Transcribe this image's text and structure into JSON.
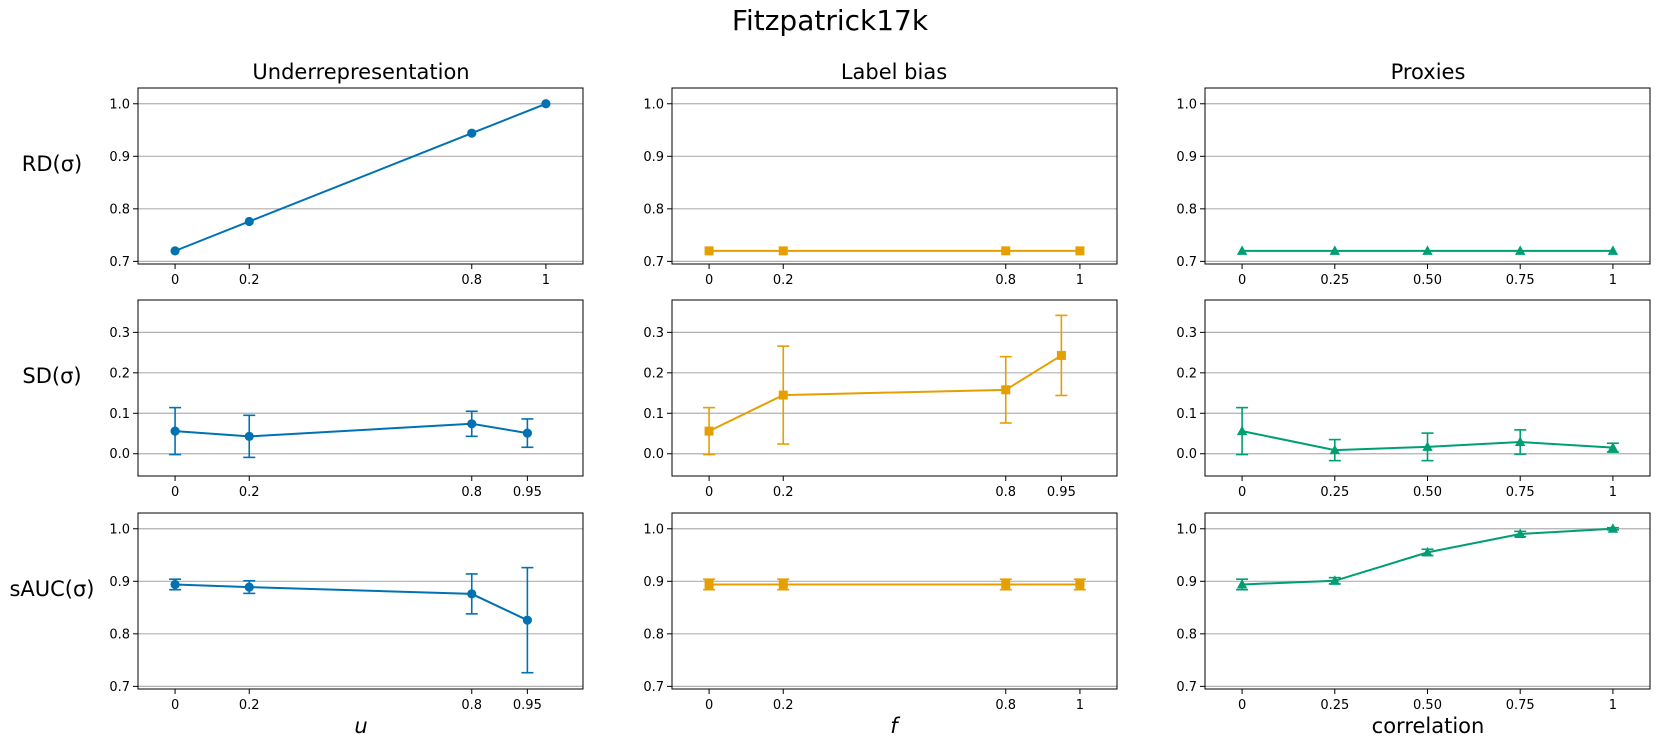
{
  "figure_title": "Fitzpatrick17k",
  "column_titles": [
    "Underrepresentation",
    "Label bias",
    "Proxies"
  ],
  "row_labels": [
    "RD(σ)",
    "SD(σ)",
    "sAUC(σ)"
  ],
  "x_labels": [
    "u",
    "f",
    "correlation"
  ],
  "colors": {
    "underrepresentation": "#0072B2",
    "label_bias": "#E69F00",
    "proxies": "#009E73",
    "grid": "#b0b0b0",
    "axis": "#000000"
  },
  "chart_data": [
    {
      "type": "line",
      "row": "RD(σ)",
      "column": "Underrepresentation",
      "marker": "circle",
      "color": "#0072B2",
      "x": [
        0,
        0.2,
        0.8,
        1
      ],
      "x_tick_labels": [
        "0",
        "0.2",
        "0.8",
        "1"
      ],
      "xlim": [
        -0.1,
        1.1
      ],
      "y": [
        0.72,
        0.776,
        0.944,
        1.0
      ],
      "err": null,
      "ylim": [
        0.695,
        1.03
      ],
      "yticks": [
        0.7,
        0.8,
        0.9,
        1.0
      ],
      "y_tick_labels": [
        "0.7",
        "0.8",
        "0.9",
        "1.0"
      ]
    },
    {
      "type": "line",
      "row": "RD(σ)",
      "column": "Label bias",
      "marker": "square",
      "color": "#E69F00",
      "x": [
        0,
        0.2,
        0.8,
        1
      ],
      "x_tick_labels": [
        "0",
        "0.2",
        "0.8",
        "1"
      ],
      "xlim": [
        -0.1,
        1.1
      ],
      "y": [
        0.72,
        0.72,
        0.72,
        0.72
      ],
      "err": null,
      "ylim": [
        0.695,
        1.03
      ],
      "yticks": [
        0.7,
        0.8,
        0.9,
        1.0
      ],
      "y_tick_labels": [
        "0.7",
        "0.8",
        "0.9",
        "1.0"
      ]
    },
    {
      "type": "line",
      "row": "RD(σ)",
      "column": "Proxies",
      "marker": "triangle",
      "color": "#009E73",
      "x": [
        0,
        0.25,
        0.5,
        0.75,
        1
      ],
      "x_tick_labels": [
        "0",
        "0.25",
        "0.50",
        "0.75",
        "1"
      ],
      "xlim": [
        -0.1,
        1.1
      ],
      "y": [
        0.72,
        0.72,
        0.72,
        0.72,
        0.72
      ],
      "err": null,
      "ylim": [
        0.695,
        1.03
      ],
      "yticks": [
        0.7,
        0.8,
        0.9,
        1.0
      ],
      "y_tick_labels": [
        "0.7",
        "0.8",
        "0.9",
        "1.0"
      ]
    },
    {
      "type": "line",
      "row": "SD(σ)",
      "column": "Underrepresentation",
      "marker": "circle",
      "color": "#0072B2",
      "x": [
        0,
        0.2,
        0.8,
        0.95
      ],
      "x_tick_labels": [
        "0",
        "0.2",
        "0.8",
        "0.95"
      ],
      "xlim": [
        -0.1,
        1.1
      ],
      "y": [
        0.056,
        0.043,
        0.074,
        0.051
      ],
      "err": [
        0.058,
        0.052,
        0.031,
        0.035
      ],
      "ylim": [
        -0.055,
        0.38
      ],
      "yticks": [
        0.0,
        0.1,
        0.2,
        0.3
      ],
      "y_tick_labels": [
        "0.0",
        "0.1",
        "0.2",
        "0.3"
      ]
    },
    {
      "type": "line",
      "row": "SD(σ)",
      "column": "Label bias",
      "marker": "square",
      "color": "#E69F00",
      "x": [
        0,
        0.2,
        0.8,
        0.95
      ],
      "x_tick_labels": [
        "0",
        "0.2",
        "0.8",
        "0.95"
      ],
      "xlim": [
        -0.1,
        1.1
      ],
      "y": [
        0.056,
        0.145,
        0.158,
        0.243
      ],
      "err": [
        0.058,
        0.121,
        0.082,
        0.099
      ],
      "ylim": [
        -0.055,
        0.38
      ],
      "yticks": [
        0.0,
        0.1,
        0.2,
        0.3
      ],
      "y_tick_labels": [
        "0.0",
        "0.1",
        "0.2",
        "0.3"
      ]
    },
    {
      "type": "line",
      "row": "SD(σ)",
      "column": "Proxies",
      "marker": "triangle",
      "color": "#009E73",
      "x": [
        0,
        0.25,
        0.5,
        0.75,
        1
      ],
      "x_tick_labels": [
        "0",
        "0.25",
        "0.50",
        "0.75",
        "1"
      ],
      "xlim": [
        -0.1,
        1.1
      ],
      "y": [
        0.056,
        0.009,
        0.017,
        0.029,
        0.015
      ],
      "err": [
        0.058,
        0.026,
        0.034,
        0.03,
        0.011
      ],
      "ylim": [
        -0.055,
        0.38
      ],
      "yticks": [
        0.0,
        0.1,
        0.2,
        0.3
      ],
      "y_tick_labels": [
        "0.0",
        "0.1",
        "0.2",
        "0.3"
      ]
    },
    {
      "type": "line",
      "row": "sAUC(σ)",
      "column": "Underrepresentation",
      "marker": "circle",
      "color": "#0072B2",
      "x": [
        0,
        0.2,
        0.8,
        0.95
      ],
      "x_tick_labels": [
        "0",
        "0.2",
        "0.8",
        "0.95"
      ],
      "xlim": [
        -0.1,
        1.1
      ],
      "y": [
        0.894,
        0.889,
        0.876,
        0.826
      ],
      "err": [
        0.01,
        0.012,
        0.038,
        0.1
      ],
      "ylim": [
        0.695,
        1.03
      ],
      "yticks": [
        0.7,
        0.8,
        0.9,
        1.0
      ],
      "y_tick_labels": [
        "0.7",
        "0.8",
        "0.9",
        "1.0"
      ]
    },
    {
      "type": "line",
      "row": "sAUC(σ)",
      "column": "Label bias",
      "marker": "square",
      "color": "#E69F00",
      "x": [
        0,
        0.2,
        0.8,
        1
      ],
      "x_tick_labels": [
        "0",
        "0.2",
        "0.8",
        "1"
      ],
      "xlim": [
        -0.1,
        1.1
      ],
      "y": [
        0.894,
        0.894,
        0.894,
        0.894
      ],
      "err": [
        0.01,
        0.01,
        0.01,
        0.01
      ],
      "ylim": [
        0.695,
        1.03
      ],
      "yticks": [
        0.7,
        0.8,
        0.9,
        1.0
      ],
      "y_tick_labels": [
        "0.7",
        "0.8",
        "0.9",
        "1.0"
      ]
    },
    {
      "type": "line",
      "row": "sAUC(σ)",
      "column": "Proxies",
      "marker": "triangle",
      "color": "#009E73",
      "x": [
        0,
        0.25,
        0.5,
        0.75,
        1
      ],
      "x_tick_labels": [
        "0",
        "0.25",
        "0.50",
        "0.75",
        "1"
      ],
      "xlim": [
        -0.1,
        1.1
      ],
      "y": [
        0.894,
        0.901,
        0.955,
        0.99,
        1.0
      ],
      "err": [
        0.01,
        0.006,
        0.006,
        0.005,
        0.002
      ],
      "ylim": [
        0.695,
        1.03
      ],
      "yticks": [
        0.7,
        0.8,
        0.9,
        1.0
      ],
      "y_tick_labels": [
        "0.7",
        "0.8",
        "0.9",
        "1.0"
      ]
    }
  ]
}
